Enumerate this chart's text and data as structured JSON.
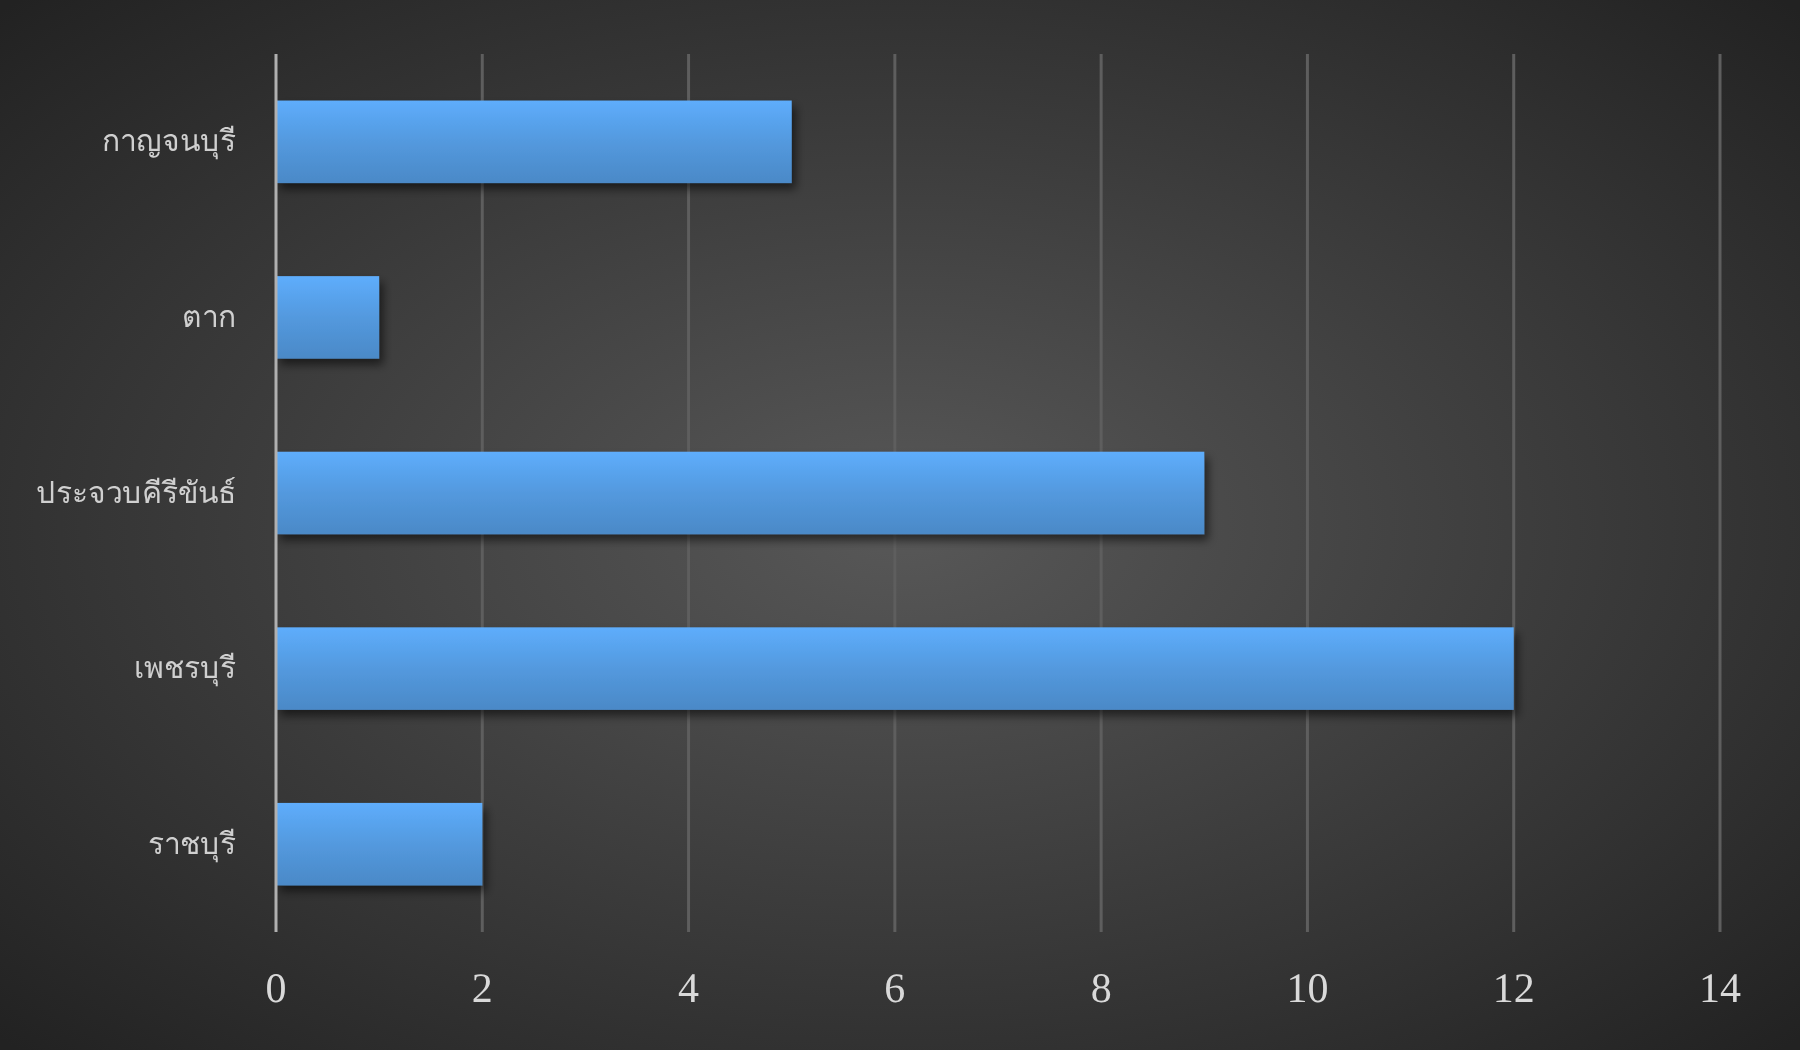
{
  "chart_data": {
    "type": "bar",
    "orientation": "horizontal",
    "categories": [
      "กาญจนบุรี",
      "ตาก",
      "ประจวบคีรีขันธ์",
      "เพชรบุรี",
      "ราชบุรี"
    ],
    "values": [
      5,
      1,
      9,
      12,
      2
    ],
    "color": "#5399de",
    "xlim": [
      0,
      14
    ],
    "xticks": [
      0,
      2,
      4,
      6,
      8,
      10,
      12,
      14
    ],
    "grid": "x"
  }
}
